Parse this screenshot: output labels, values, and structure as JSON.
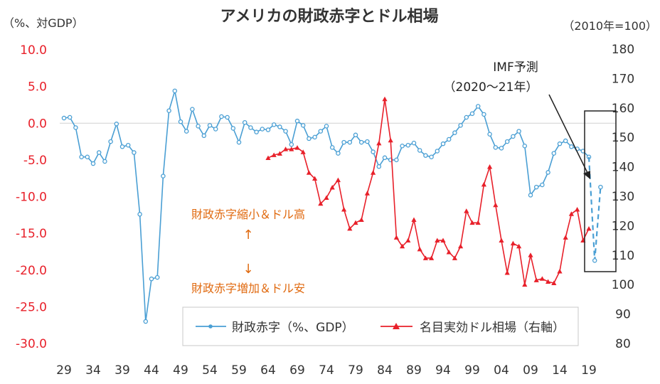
{
  "chart_data": {
    "type": "line",
    "title": "アメリカの財政赤字とドル相場",
    "left_axis_unit": "（%、対GDP）",
    "right_axis_unit": "（2010年=100）",
    "left_ticks": [
      "10.0",
      "5.0",
      "0.0",
      "-5.0",
      "-10.0",
      "-15.0",
      "-20.0",
      "-25.0",
      "-30.0"
    ],
    "left_ylim": [
      -30,
      10
    ],
    "right_ticks": [
      "180",
      "170",
      "160",
      "150",
      "140",
      "130",
      "120",
      "110",
      "100",
      "90",
      "80"
    ],
    "right_ylim": [
      80,
      180
    ],
    "x_ticks": [
      "29",
      "34",
      "39",
      "44",
      "49",
      "54",
      "59",
      "64",
      "69",
      "74",
      "79",
      "84",
      "89",
      "94",
      "99",
      "04",
      "09",
      "14",
      "19"
    ],
    "x_range": [
      1929,
      2021
    ],
    "grid": false,
    "legend_position": "bottom-right",
    "series": [
      {
        "name": "財政赤字（%、GDP）",
        "axis": "left",
        "color": "#4a9fd4",
        "marker": "circle",
        "x": [
          1929,
          1930,
          1931,
          1932,
          1933,
          1934,
          1935,
          1936,
          1937,
          1938,
          1939,
          1940,
          1941,
          1942,
          1943,
          1944,
          1945,
          1946,
          1947,
          1948,
          1949,
          1950,
          1951,
          1952,
          1953,
          1954,
          1955,
          1956,
          1957,
          1958,
          1959,
          1960,
          1961,
          1962,
          1963,
          1964,
          1965,
          1966,
          1967,
          1968,
          1969,
          1970,
          1971,
          1972,
          1973,
          1974,
          1975,
          1976,
          1977,
          1978,
          1979,
          1980,
          1981,
          1982,
          1983,
          1984,
          1985,
          1986,
          1987,
          1988,
          1989,
          1990,
          1991,
          1992,
          1993,
          1994,
          1995,
          1996,
          1997,
          1998,
          1999,
          2000,
          2001,
          2002,
          2003,
          2004,
          2005,
          2006,
          2007,
          2008,
          2009,
          2010,
          2011,
          2012,
          2013,
          2014,
          2015,
          2016,
          2017,
          2018,
          2019
        ],
        "y": [
          0.7,
          0.8,
          -0.6,
          -4.6,
          -4.6,
          -5.5,
          -4.0,
          -5.2,
          -2.5,
          -0.1,
          -3.2,
          -3.0,
          -4.0,
          -12.4,
          -27.0,
          -21.2,
          -21.0,
          -7.2,
          1.7,
          4.4,
          0.2,
          -1.1,
          1.9,
          -0.4,
          -1.7,
          -0.3,
          -0.8,
          0.9,
          0.8,
          -0.7,
          -2.6,
          0.1,
          -0.6,
          -1.2,
          -0.8,
          -0.9,
          -0.2,
          -0.5,
          -1.1,
          -2.9,
          0.3,
          -0.3,
          -2.1,
          -1.9,
          -1.1,
          -0.4,
          -3.3,
          -4.1,
          -2.6,
          -2.6,
          -1.6,
          -2.6,
          -2.5,
          -3.9,
          -5.9,
          -4.7,
          -5.0,
          -5.0,
          -3.1,
          -3.0,
          -2.7,
          -3.7,
          -4.4,
          -4.6,
          -3.8,
          -2.8,
          -2.2,
          -1.3,
          -0.3,
          0.8,
          1.3,
          2.3,
          1.2,
          -1.5,
          -3.3,
          -3.4,
          -2.5,
          -1.8,
          -1.1,
          -3.1,
          -9.8,
          -8.7,
          -8.4,
          -6.7,
          -4.1,
          -2.8,
          -2.4,
          -3.2,
          -3.5,
          -3.8,
          -4.6
        ]
      },
      {
        "name": "IMF予測（2020〜21年）",
        "axis": "left",
        "color": "#4a9fd4",
        "marker": "circle",
        "dashed": true,
        "x": [
          2019,
          2020,
          2021
        ],
        "y": [
          -4.6,
          -18.7,
          -8.7
        ]
      },
      {
        "name": "名目実効ドル相場（右軸）",
        "axis": "right",
        "color": "#e8202a",
        "marker": "triangle",
        "x": [
          1964,
          1965,
          1966,
          1967,
          1968,
          1969,
          1970,
          1971,
          1972,
          1973,
          1974,
          1975,
          1976,
          1977,
          1978,
          1979,
          1980,
          1981,
          1982,
          1983,
          1984,
          1985,
          1986,
          1987,
          1988,
          1989,
          1990,
          1991,
          1992,
          1993,
          1994,
          1995,
          1996,
          1997,
          1998,
          1999,
          2000,
          2001,
          2002,
          2003,
          2004,
          2005,
          2006,
          2007,
          2008,
          2009,
          2010,
          2011,
          2012,
          2013,
          2014,
          2015,
          2016,
          2017,
          2018,
          2019
        ],
        "y": [
          143,
          144,
          144.5,
          146,
          146,
          146.5,
          145,
          138,
          136,
          127.5,
          129.5,
          133,
          135.5,
          125.5,
          119,
          121,
          122,
          131,
          138,
          148,
          163,
          149,
          116,
          113,
          115,
          122,
          112,
          109,
          109,
          115,
          115,
          111,
          109,
          113,
          125,
          121,
          121,
          134,
          140,
          127,
          115,
          104,
          114,
          113,
          100,
          110,
          101.5,
          102,
          101,
          100.5,
          104.5,
          116,
          124,
          125.5,
          115,
          119
        ]
      }
    ],
    "annotations": {
      "imf_forecast_label_1": "IMF予測",
      "imf_forecast_label_2": "（2020〜21年）",
      "shrink_note": "財政赤字縮小＆ドル高",
      "up_arrow": "↑",
      "down_arrow": "↓",
      "grow_note": "財政赤字増加＆ドル安"
    },
    "colors": {
      "left_axis_text": "#e8202a",
      "right_axis_text": "#333333",
      "annotation_orange": "#e06a10"
    }
  }
}
